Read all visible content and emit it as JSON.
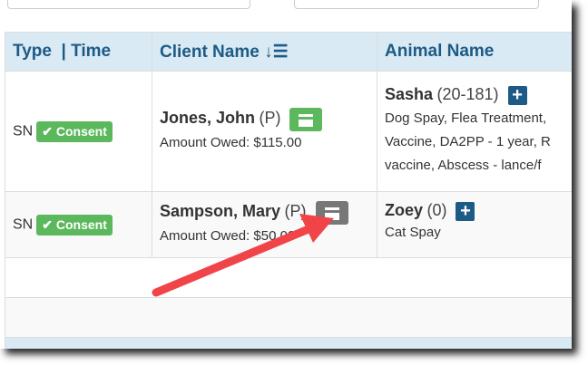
{
  "table": {
    "headers": {
      "type_time": "Type  | Time",
      "client": "Client Name",
      "animal": "Animal Name"
    },
    "rows": [
      {
        "type": "SN",
        "consent": "Consent",
        "client_name": "Jones, John",
        "client_flag": "(P)",
        "amount": "Amount Owed: $115.00",
        "card_color": "#5cb85c",
        "animal": "Sasha",
        "animal_id": "(20-181)",
        "services": [
          "Dog Spay, Flea Treatment,",
          "Vaccine, DA2PP - 1 year, R",
          "vaccine, Abscess - lance/f"
        ]
      },
      {
        "type": "SN",
        "consent": "Consent",
        "client_name": "Sampson, Mary",
        "client_flag": "(P)",
        "amount": "Amount Owed: $50.00",
        "card_color": "#777777",
        "animal": "Zoey",
        "animal_id": "(0)",
        "services": [
          "Cat Spay"
        ]
      }
    ]
  },
  "colors": {
    "header_bg": "#d9eaf4",
    "header_text": "#1d5a86",
    "consent": "#5cb85c",
    "arrow": "#f04448"
  }
}
